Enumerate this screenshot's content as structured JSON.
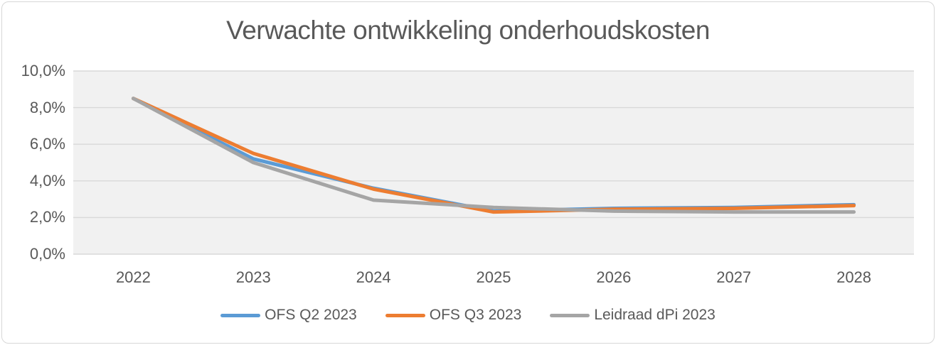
{
  "chart_data": {
    "type": "line",
    "title": "Verwachte ontwikkeling onderhoudskosten",
    "categories": [
      "2022",
      "2023",
      "2024",
      "2025",
      "2026",
      "2027",
      "2028"
    ],
    "series": [
      {
        "name": "OFS Q2 2023",
        "color": "#5B9BD5",
        "values": [
          8.5,
          5.2,
          3.6,
          2.35,
          2.5,
          2.55,
          2.7
        ]
      },
      {
        "name": "OFS Q3 2023",
        "color": "#ED7D31",
        "values": [
          8.5,
          5.5,
          3.55,
          2.3,
          2.45,
          2.5,
          2.65
        ]
      },
      {
        "name": "Leidraad dPi 2023",
        "color": "#A5A5A5",
        "values": [
          8.5,
          5.0,
          2.95,
          2.55,
          2.35,
          2.3,
          2.3
        ]
      }
    ],
    "ylim": [
      0,
      10
    ],
    "ytick_values": [
      0,
      2,
      4,
      6,
      8,
      10
    ],
    "ytick_labels": [
      "0,0%",
      "2,0%",
      "4,0%",
      "6,0%",
      "8,0%",
      "10,0%"
    ],
    "xlabel": "",
    "ylabel": "",
    "grid": true,
    "legend_position": "bottom",
    "colors": {
      "plot_background": "#F1F1F1",
      "gridline": "#D9D9D9",
      "text": "#595959",
      "frame_border": "#D7D7D7"
    }
  }
}
